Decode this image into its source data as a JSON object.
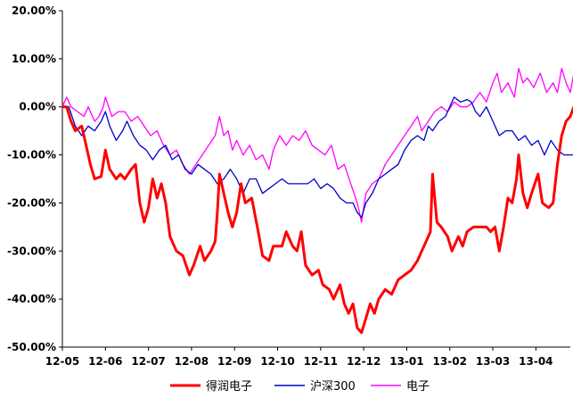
{
  "chart_data": {
    "type": "line",
    "title": "",
    "xlabel": "",
    "ylabel": "",
    "ylim": [
      -50,
      20
    ],
    "y_unit": "%",
    "y_ticks": [
      20,
      10,
      0,
      -10,
      -20,
      -30,
      -40,
      -50
    ],
    "y_tick_labels": [
      "20.00%",
      "10.00%",
      "0.00%",
      "-10.00%",
      "-20.00%",
      "-30.00%",
      "-40.00%",
      "-50.00%"
    ],
    "x_tick_labels": [
      "12-05",
      "12-06",
      "12-07",
      "12-08",
      "12-09",
      "12-10",
      "12-11",
      "12-12",
      "13-01",
      "13-02",
      "13-03",
      "13-04"
    ],
    "x_range_months": [
      0,
      11.8
    ],
    "grid": false,
    "legend_position": "bottom",
    "series": [
      {
        "name": "得润电子",
        "color": "#ff0000",
        "points": [
          [
            0.0,
            0
          ],
          [
            0.1,
            0
          ],
          [
            0.2,
            -3
          ],
          [
            0.3,
            -5
          ],
          [
            0.45,
            -4
          ],
          [
            0.55,
            -8
          ],
          [
            0.65,
            -12
          ],
          [
            0.75,
            -15
          ],
          [
            0.9,
            -14.5
          ],
          [
            1.0,
            -9
          ],
          [
            1.1,
            -13
          ],
          [
            1.25,
            -15
          ],
          [
            1.35,
            -14
          ],
          [
            1.45,
            -15
          ],
          [
            1.6,
            -13
          ],
          [
            1.7,
            -12
          ],
          [
            1.8,
            -20
          ],
          [
            1.9,
            -24
          ],
          [
            2.0,
            -21
          ],
          [
            2.1,
            -15
          ],
          [
            2.2,
            -19
          ],
          [
            2.3,
            -16
          ],
          [
            2.4,
            -20
          ],
          [
            2.5,
            -27
          ],
          [
            2.65,
            -30
          ],
          [
            2.8,
            -31
          ],
          [
            2.95,
            -35
          ],
          [
            3.05,
            -33
          ],
          [
            3.2,
            -29
          ],
          [
            3.3,
            -32
          ],
          [
            3.45,
            -30
          ],
          [
            3.55,
            -28
          ],
          [
            3.6,
            -22
          ],
          [
            3.65,
            -14
          ],
          [
            3.75,
            -18
          ],
          [
            3.85,
            -22
          ],
          [
            3.95,
            -25
          ],
          [
            4.05,
            -22
          ],
          [
            4.15,
            -16
          ],
          [
            4.25,
            -20
          ],
          [
            4.4,
            -19
          ],
          [
            4.55,
            -26
          ],
          [
            4.65,
            -31
          ],
          [
            4.8,
            -32
          ],
          [
            4.9,
            -29
          ],
          [
            5.1,
            -29
          ],
          [
            5.2,
            -26
          ],
          [
            5.35,
            -29
          ],
          [
            5.45,
            -30
          ],
          [
            5.55,
            -26
          ],
          [
            5.65,
            -33
          ],
          [
            5.8,
            -35
          ],
          [
            5.95,
            -34
          ],
          [
            6.05,
            -37
          ],
          [
            6.2,
            -38
          ],
          [
            6.3,
            -40
          ],
          [
            6.45,
            -37
          ],
          [
            6.55,
            -41
          ],
          [
            6.65,
            -43
          ],
          [
            6.75,
            -41
          ],
          [
            6.85,
            -46
          ],
          [
            6.95,
            -47
          ],
          [
            7.05,
            -44
          ],
          [
            7.15,
            -41
          ],
          [
            7.25,
            -43
          ],
          [
            7.35,
            -40
          ],
          [
            7.5,
            -38
          ],
          [
            7.65,
            -39
          ],
          [
            7.8,
            -36
          ],
          [
            7.95,
            -35
          ],
          [
            8.1,
            -34
          ],
          [
            8.25,
            -32
          ],
          [
            8.35,
            -30
          ],
          [
            8.45,
            -28
          ],
          [
            8.55,
            -26
          ],
          [
            8.6,
            -14
          ],
          [
            8.7,
            -24
          ],
          [
            8.8,
            -25
          ],
          [
            8.95,
            -27
          ],
          [
            9.05,
            -30
          ],
          [
            9.2,
            -27
          ],
          [
            9.3,
            -29
          ],
          [
            9.4,
            -26
          ],
          [
            9.55,
            -25
          ],
          [
            9.7,
            -25
          ],
          [
            9.85,
            -25
          ],
          [
            9.95,
            -26
          ],
          [
            10.05,
            -25
          ],
          [
            10.15,
            -30
          ],
          [
            10.25,
            -25
          ],
          [
            10.35,
            -19
          ],
          [
            10.45,
            -20
          ],
          [
            10.55,
            -15
          ],
          [
            10.6,
            -10
          ],
          [
            10.7,
            -18
          ],
          [
            10.8,
            -21
          ],
          [
            10.9,
            -18
          ],
          [
            11.05,
            -14
          ],
          [
            11.15,
            -20
          ],
          [
            11.3,
            -21
          ],
          [
            11.4,
            -20
          ],
          [
            11.5,
            -12
          ],
          [
            11.6,
            -6
          ],
          [
            11.7,
            -3
          ],
          [
            11.8,
            -2
          ],
          [
            11.88,
            0
          ]
        ]
      },
      {
        "name": "沪深300",
        "color": "#0000cc",
        "points": [
          [
            0.0,
            0
          ],
          [
            0.15,
            0
          ],
          [
            0.3,
            -4
          ],
          [
            0.45,
            -6
          ],
          [
            0.6,
            -4
          ],
          [
            0.75,
            -5
          ],
          [
            0.9,
            -3
          ],
          [
            1.0,
            -1
          ],
          [
            1.1,
            -4
          ],
          [
            1.25,
            -7
          ],
          [
            1.4,
            -5
          ],
          [
            1.5,
            -3
          ],
          [
            1.65,
            -6
          ],
          [
            1.8,
            -8
          ],
          [
            1.95,
            -9
          ],
          [
            2.1,
            -11
          ],
          [
            2.25,
            -9
          ],
          [
            2.4,
            -8
          ],
          [
            2.55,
            -11
          ],
          [
            2.7,
            -10
          ],
          [
            2.85,
            -13
          ],
          [
            3.0,
            -14
          ],
          [
            3.15,
            -12
          ],
          [
            3.3,
            -13
          ],
          [
            3.45,
            -14
          ],
          [
            3.6,
            -16
          ],
          [
            3.75,
            -15
          ],
          [
            3.9,
            -13
          ],
          [
            4.05,
            -15
          ],
          [
            4.2,
            -18
          ],
          [
            4.35,
            -15
          ],
          [
            4.5,
            -15
          ],
          [
            4.65,
            -18
          ],
          [
            4.8,
            -17
          ],
          [
            4.95,
            -16
          ],
          [
            5.1,
            -15
          ],
          [
            5.25,
            -16
          ],
          [
            5.4,
            -16
          ],
          [
            5.55,
            -16
          ],
          [
            5.7,
            -16
          ],
          [
            5.85,
            -15
          ],
          [
            6.0,
            -17
          ],
          [
            6.15,
            -16
          ],
          [
            6.3,
            -17
          ],
          [
            6.45,
            -19
          ],
          [
            6.6,
            -20
          ],
          [
            6.75,
            -20
          ],
          [
            6.85,
            -22
          ],
          [
            6.95,
            -23
          ],
          [
            7.05,
            -20
          ],
          [
            7.2,
            -18
          ],
          [
            7.35,
            -15
          ],
          [
            7.5,
            -14
          ],
          [
            7.65,
            -13
          ],
          [
            7.8,
            -12
          ],
          [
            7.95,
            -9
          ],
          [
            8.1,
            -7
          ],
          [
            8.25,
            -6
          ],
          [
            8.4,
            -7
          ],
          [
            8.5,
            -4
          ],
          [
            8.6,
            -5
          ],
          [
            8.75,
            -3
          ],
          [
            8.9,
            -2
          ],
          [
            9.0,
            0
          ],
          [
            9.1,
            2
          ],
          [
            9.25,
            1
          ],
          [
            9.4,
            1.5
          ],
          [
            9.5,
            1
          ],
          [
            9.6,
            -1
          ],
          [
            9.7,
            -2
          ],
          [
            9.85,
            0
          ],
          [
            10.0,
            -3
          ],
          [
            10.15,
            -6
          ],
          [
            10.3,
            -5
          ],
          [
            10.45,
            -5
          ],
          [
            10.6,
            -7
          ],
          [
            10.75,
            -6
          ],
          [
            10.9,
            -8
          ],
          [
            11.05,
            -7
          ],
          [
            11.2,
            -10
          ],
          [
            11.35,
            -7
          ],
          [
            11.5,
            -9
          ],
          [
            11.65,
            -10
          ],
          [
            11.88,
            -10
          ]
        ]
      },
      {
        "name": "电子",
        "color": "#ff00ff",
        "points": [
          [
            0.0,
            0
          ],
          [
            0.1,
            2
          ],
          [
            0.2,
            0
          ],
          [
            0.35,
            -1
          ],
          [
            0.5,
            -2
          ],
          [
            0.6,
            0
          ],
          [
            0.75,
            -3
          ],
          [
            0.85,
            -2
          ],
          [
            0.95,
            0
          ],
          [
            1.0,
            2
          ],
          [
            1.15,
            -2
          ],
          [
            1.3,
            -1
          ],
          [
            1.45,
            -1
          ],
          [
            1.6,
            -3
          ],
          [
            1.75,
            -2
          ],
          [
            1.9,
            -4
          ],
          [
            2.05,
            -6
          ],
          [
            2.2,
            -5
          ],
          [
            2.35,
            -8
          ],
          [
            2.5,
            -10
          ],
          [
            2.65,
            -9
          ],
          [
            2.8,
            -12
          ],
          [
            2.95,
            -14
          ],
          [
            3.1,
            -12
          ],
          [
            3.25,
            -10
          ],
          [
            3.4,
            -8
          ],
          [
            3.55,
            -6
          ],
          [
            3.65,
            -2
          ],
          [
            3.75,
            -6
          ],
          [
            3.85,
            -5
          ],
          [
            3.95,
            -9
          ],
          [
            4.05,
            -7
          ],
          [
            4.2,
            -10
          ],
          [
            4.35,
            -8
          ],
          [
            4.5,
            -11
          ],
          [
            4.65,
            -10
          ],
          [
            4.8,
            -13
          ],
          [
            4.9,
            -9
          ],
          [
            5.05,
            -6
          ],
          [
            5.2,
            -8
          ],
          [
            5.35,
            -6
          ],
          [
            5.5,
            -7
          ],
          [
            5.65,
            -5
          ],
          [
            5.8,
            -8
          ],
          [
            5.95,
            -9
          ],
          [
            6.1,
            -10
          ],
          [
            6.25,
            -8
          ],
          [
            6.4,
            -13
          ],
          [
            6.55,
            -12
          ],
          [
            6.7,
            -16
          ],
          [
            6.85,
            -20
          ],
          [
            6.95,
            -24
          ],
          [
            7.05,
            -18
          ],
          [
            7.2,
            -16
          ],
          [
            7.35,
            -15
          ],
          [
            7.5,
            -12
          ],
          [
            7.65,
            -10
          ],
          [
            7.8,
            -8
          ],
          [
            7.95,
            -6
          ],
          [
            8.1,
            -4
          ],
          [
            8.25,
            -2
          ],
          [
            8.35,
            -5
          ],
          [
            8.5,
            -3
          ],
          [
            8.65,
            -1
          ],
          [
            8.8,
            0
          ],
          [
            8.95,
            -1
          ],
          [
            9.1,
            1
          ],
          [
            9.25,
            0
          ],
          [
            9.4,
            0
          ],
          [
            9.55,
            1
          ],
          [
            9.7,
            3
          ],
          [
            9.85,
            1
          ],
          [
            10.0,
            5
          ],
          [
            10.1,
            7
          ],
          [
            10.2,
            3
          ],
          [
            10.35,
            5
          ],
          [
            10.5,
            2
          ],
          [
            10.6,
            8
          ],
          [
            10.7,
            5
          ],
          [
            10.8,
            6
          ],
          [
            10.95,
            4
          ],
          [
            11.1,
            7
          ],
          [
            11.25,
            3
          ],
          [
            11.4,
            5
          ],
          [
            11.5,
            3
          ],
          [
            11.6,
            8
          ],
          [
            11.7,
            5
          ],
          [
            11.8,
            3
          ],
          [
            11.88,
            7
          ]
        ]
      }
    ]
  }
}
